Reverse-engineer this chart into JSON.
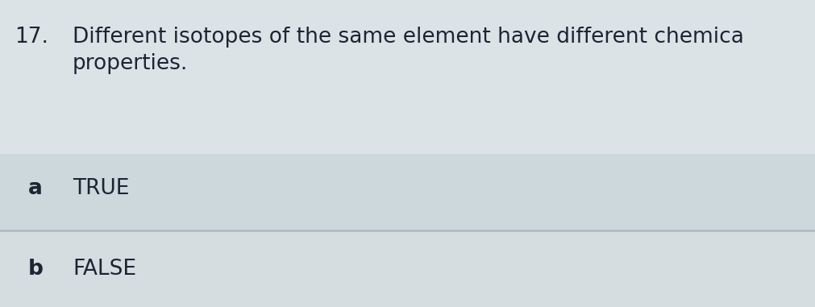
{
  "question_number": "17.",
  "question_text_line1": "Different isotopes of the same element have different chemica",
  "question_text_line2": "properties.",
  "option_a_label": "a",
  "option_a_text": "TRUE",
  "option_b_label": "b",
  "option_b_text": "FALSE",
  "bg_top": "#dce3e7",
  "bg_option_a": "#cdd8dd",
  "bg_option_b": "#d5dde1",
  "divider_color": "#aebdc5",
  "text_color": "#1c2533",
  "label_color": "#1c2533",
  "question_fontsize": 19,
  "option_fontsize": 19,
  "label_fontsize": 19,
  "fig_width": 10.11,
  "fig_height": 3.81
}
